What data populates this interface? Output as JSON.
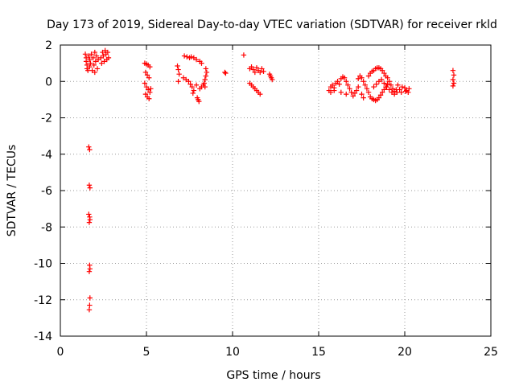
{
  "chart_data": {
    "type": "scatter",
    "title": "Day 173 of 2019, Sidereal Day-to-day VTEC variation (SDTVAR) for receiver rkld",
    "xlabel": "GPS time / hours",
    "ylabel": "SDTVAR / TECUs",
    "xlim": [
      0,
      25
    ],
    "ylim": [
      -14,
      2
    ],
    "xticks": [
      0,
      5,
      10,
      15,
      20,
      25
    ],
    "yticks": [
      -14,
      -12,
      -10,
      -8,
      -6,
      -4,
      -2,
      0,
      2
    ],
    "xtick_labels": [
      "0",
      "5",
      "10",
      "15",
      "20",
      "25"
    ],
    "ytick_labels": [
      "-14",
      "-12",
      "-10",
      "-8",
      "-6",
      "-4",
      "-2",
      "0",
      "2"
    ],
    "grid": true,
    "marker": "+",
    "color": "#ff0000",
    "series": [
      {
        "name": "SDTVAR",
        "points": [
          [
            1.45,
            1.5
          ],
          [
            1.5,
            1.3
          ],
          [
            1.5,
            1.1
          ],
          [
            1.55,
            0.9
          ],
          [
            1.55,
            0.7
          ],
          [
            1.6,
            0.6
          ],
          [
            1.65,
            1.4
          ],
          [
            1.7,
            1.2
          ],
          [
            1.7,
            0.8
          ],
          [
            1.75,
            1.0
          ],
          [
            1.8,
            1.5
          ],
          [
            1.85,
            0.6
          ],
          [
            1.9,
            1.3
          ],
          [
            1.95,
            0.9
          ],
          [
            2.0,
            0.5
          ],
          [
            2.0,
            1.6
          ],
          [
            2.05,
            1.1
          ],
          [
            2.1,
            1.4
          ],
          [
            2.15,
            0.7
          ],
          [
            2.2,
            1.2
          ],
          [
            2.35,
            1.3
          ],
          [
            2.4,
            1.0
          ],
          [
            2.45,
            1.6
          ],
          [
            2.5,
            1.4
          ],
          [
            2.55,
            1.1
          ],
          [
            2.6,
            1.7
          ],
          [
            2.65,
            1.5
          ],
          [
            2.7,
            1.2
          ],
          [
            2.75,
            1.6
          ],
          [
            2.8,
            1.3
          ],
          [
            1.65,
            -3.6
          ],
          [
            1.7,
            -3.75
          ],
          [
            1.68,
            -5.7
          ],
          [
            1.72,
            -5.85
          ],
          [
            1.65,
            -7.3
          ],
          [
            1.7,
            -7.45
          ],
          [
            1.72,
            -7.6
          ],
          [
            1.68,
            -7.75
          ],
          [
            1.7,
            -10.1
          ],
          [
            1.72,
            -10.3
          ],
          [
            1.68,
            -10.45
          ],
          [
            1.72,
            -11.9
          ],
          [
            1.7,
            -12.3
          ],
          [
            1.68,
            -12.55
          ],
          [
            4.9,
            1.0
          ],
          [
            5.0,
            0.95
          ],
          [
            5.1,
            0.9
          ],
          [
            5.2,
            0.8
          ],
          [
            4.95,
            0.5
          ],
          [
            5.05,
            0.35
          ],
          [
            5.15,
            0.2
          ],
          [
            4.9,
            -0.1
          ],
          [
            5.0,
            -0.3
          ],
          [
            5.1,
            -0.45
          ],
          [
            5.2,
            -0.6
          ],
          [
            4.95,
            -0.7
          ],
          [
            5.05,
            -0.85
          ],
          [
            5.15,
            -0.95
          ],
          [
            5.25,
            -0.4
          ],
          [
            6.8,
            0.85
          ],
          [
            6.85,
            0.65
          ],
          [
            6.9,
            0.4
          ],
          [
            6.85,
            0.0
          ],
          [
            7.2,
            1.4
          ],
          [
            7.35,
            1.35
          ],
          [
            7.5,
            1.3
          ],
          [
            7.6,
            1.35
          ],
          [
            7.75,
            1.3
          ],
          [
            7.9,
            1.2
          ],
          [
            8.1,
            1.1
          ],
          [
            8.2,
            1.0
          ],
          [
            7.15,
            0.2
          ],
          [
            7.3,
            0.1
          ],
          [
            7.45,
            0.0
          ],
          [
            7.55,
            -0.15
          ],
          [
            7.65,
            -0.3
          ],
          [
            7.75,
            -0.5
          ],
          [
            7.7,
            -0.65
          ],
          [
            7.9,
            -0.2
          ],
          [
            7.95,
            -0.9
          ],
          [
            8.0,
            -1.0
          ],
          [
            8.05,
            -1.1
          ],
          [
            8.1,
            -0.4
          ],
          [
            8.2,
            -0.3
          ],
          [
            8.3,
            -0.2
          ],
          [
            8.35,
            -0.1
          ],
          [
            8.4,
            0.1
          ],
          [
            8.45,
            0.3
          ],
          [
            8.5,
            0.5
          ],
          [
            8.45,
            0.7
          ],
          [
            8.4,
            -0.3
          ],
          [
            9.55,
            0.5
          ],
          [
            9.6,
            0.45
          ],
          [
            10.65,
            1.45
          ],
          [
            11.0,
            0.7
          ],
          [
            11.1,
            0.8
          ],
          [
            11.2,
            0.65
          ],
          [
            11.3,
            0.5
          ],
          [
            11.4,
            0.75
          ],
          [
            11.5,
            0.6
          ],
          [
            11.6,
            0.5
          ],
          [
            11.7,
            0.7
          ],
          [
            11.8,
            0.55
          ],
          [
            11.0,
            -0.1
          ],
          [
            11.1,
            -0.2
          ],
          [
            11.2,
            -0.3
          ],
          [
            11.3,
            -0.4
          ],
          [
            11.4,
            -0.5
          ],
          [
            11.5,
            -0.6
          ],
          [
            11.6,
            -0.7
          ],
          [
            12.15,
            0.4
          ],
          [
            12.2,
            0.3
          ],
          [
            12.25,
            0.2
          ],
          [
            12.3,
            0.1
          ],
          [
            15.6,
            -0.5
          ],
          [
            15.7,
            -0.3
          ],
          [
            15.8,
            -0.2
          ],
          [
            15.9,
            -0.35
          ],
          [
            16.0,
            -0.1
          ],
          [
            16.1,
            0.0
          ],
          [
            16.2,
            -0.15
          ],
          [
            16.3,
            0.15
          ],
          [
            16.4,
            0.25
          ],
          [
            16.5,
            0.2
          ],
          [
            16.6,
            0.0
          ],
          [
            16.7,
            -0.2
          ],
          [
            16.8,
            -0.4
          ],
          [
            16.9,
            -0.6
          ],
          [
            17.0,
            -0.8
          ],
          [
            17.1,
            -0.65
          ],
          [
            17.2,
            -0.5
          ],
          [
            17.3,
            -0.3
          ],
          [
            17.3,
            0.15
          ],
          [
            17.4,
            0.3
          ],
          [
            17.5,
            0.2
          ],
          [
            17.6,
            0.0
          ],
          [
            17.7,
            -0.2
          ],
          [
            17.8,
            -0.4
          ],
          [
            17.9,
            -0.6
          ],
          [
            18.0,
            -0.85
          ],
          [
            18.1,
            -0.95
          ],
          [
            18.2,
            -1.0
          ],
          [
            18.3,
            -1.05
          ],
          [
            18.4,
            -1.0
          ],
          [
            18.5,
            -0.9
          ],
          [
            18.6,
            -0.75
          ],
          [
            18.7,
            -0.6
          ],
          [
            18.8,
            -0.45
          ],
          [
            18.9,
            -0.3
          ],
          [
            19.0,
            -0.15
          ],
          [
            17.9,
            0.3
          ],
          [
            18.0,
            0.45
          ],
          [
            18.1,
            0.55
          ],
          [
            18.2,
            0.6
          ],
          [
            18.3,
            0.7
          ],
          [
            18.4,
            0.75
          ],
          [
            18.5,
            0.75
          ],
          [
            18.6,
            0.7
          ],
          [
            18.7,
            0.6
          ],
          [
            18.8,
            0.45
          ],
          [
            18.9,
            0.3
          ],
          [
            19.0,
            0.2
          ],
          [
            19.1,
            0.0
          ],
          [
            19.2,
            -0.2
          ],
          [
            19.3,
            -0.4
          ],
          [
            19.4,
            -0.55
          ],
          [
            19.5,
            -0.45
          ],
          [
            18.2,
            -0.3
          ],
          [
            18.35,
            -0.15
          ],
          [
            18.5,
            0.0
          ],
          [
            18.65,
            0.1
          ],
          [
            18.8,
            -0.1
          ],
          [
            18.95,
            -0.3
          ],
          [
            19.1,
            -0.45
          ],
          [
            19.25,
            -0.6
          ],
          [
            19.4,
            -0.7
          ],
          [
            19.55,
            -0.6
          ],
          [
            19.7,
            -0.45
          ],
          [
            19.85,
            -0.3
          ],
          [
            20.0,
            -0.35
          ],
          [
            20.1,
            -0.5
          ],
          [
            20.2,
            -0.6
          ],
          [
            20.25,
            -0.4
          ],
          [
            15.7,
            -0.6
          ],
          [
            15.9,
            -0.5
          ],
          [
            16.3,
            -0.6
          ],
          [
            16.6,
            -0.7
          ],
          [
            17.5,
            -0.7
          ],
          [
            17.6,
            -0.9
          ],
          [
            19.6,
            -0.2
          ],
          [
            19.8,
            -0.6
          ],
          [
            20.05,
            -0.55
          ],
          [
            22.8,
            0.6
          ],
          [
            22.85,
            0.35
          ],
          [
            22.8,
            0.1
          ],
          [
            22.85,
            -0.1
          ],
          [
            22.8,
            -0.25
          ]
        ]
      }
    ]
  }
}
